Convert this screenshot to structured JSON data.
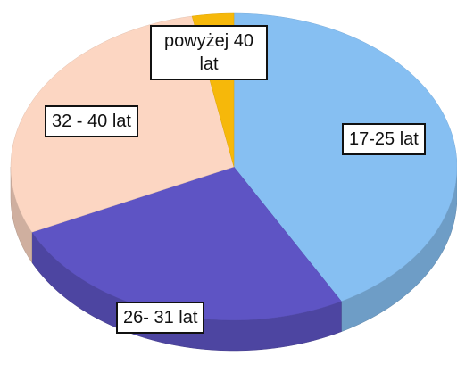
{
  "chart_data": {
    "type": "pie",
    "categories": [
      "17-25 lat",
      "26- 31 lat",
      "32 - 40 lat",
      "powyżej 40 lat"
    ],
    "values": [
      42,
      26,
      29,
      3
    ],
    "colors": [
      "#86bff2",
      "#5e54c4",
      "#fcd6c2",
      "#f6b80a"
    ]
  }
}
